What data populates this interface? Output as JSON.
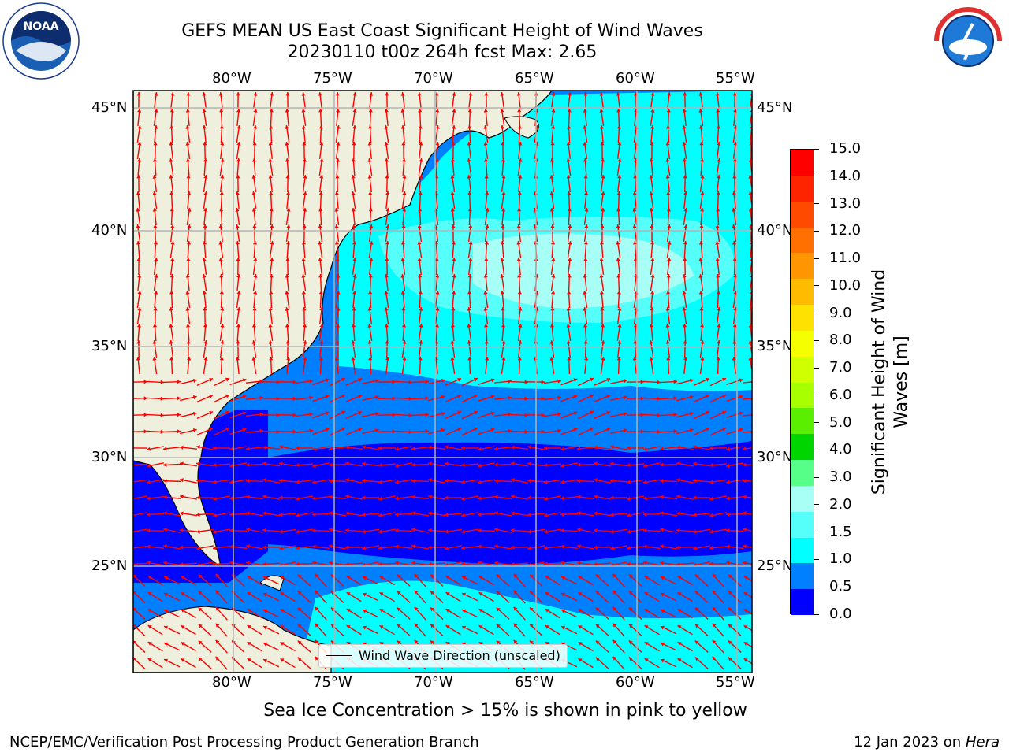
{
  "title_line1": "GEFS MEAN US East Coast Significant Height of Wind Waves",
  "title_line2": "20230110 t00z 264h fcst   Max: 2.65",
  "subtitle": "Sea Ice Concentration > 15% is shown in pink to yellow",
  "footer_left": "NCEP/EMC/Verification Post Processing Product Generation Branch",
  "footer_date": "12 Jan 2023 on",
  "footer_machine": "Hera",
  "legend_label": "Wind Wave Direction (unscaled)",
  "colorbar_title": "Significant Height of Wind Waves [m]",
  "lon_labels": [
    "80°W",
    "75°W",
    "70°W",
    "65°W",
    "60°W",
    "55°W"
  ],
  "lat_labels": [
    "45°N",
    "40°N",
    "35°N",
    "30°N",
    "25°N"
  ],
  "colorbar_ticks": [
    "15.0",
    "14.0",
    "13.0",
    "12.0",
    "11.0",
    "10.0",
    "9.0",
    "8.0",
    "7.0",
    "6.0",
    "5.0",
    "4.0",
    "3.0",
    "2.0",
    "1.5",
    "1.0",
    "0.5",
    "0.0"
  ],
  "colorbar_colors": [
    "#ff0000",
    "#ff2400",
    "#ff4a00",
    "#ff7000",
    "#ff9500",
    "#ffbb00",
    "#ffe100",
    "#f5ff00",
    "#cfff00",
    "#a8ff00",
    "#5aee00",
    "#00d500",
    "#55ff88",
    "#a8fff5",
    "#55fffa",
    "#00ffff",
    "#007fff",
    "#0000ff"
  ],
  "colors": {
    "land": "#efefdd",
    "grid": "#b3b3b3",
    "arrow": "#ff0000",
    "sea_0": "#0000ff",
    "sea_05": "#007fff",
    "sea_1": "#00ffff",
    "sea_15": "#55fffa",
    "sea_2": "#a8fff5"
  },
  "logos": {
    "noaa": "NOAA",
    "nws": "NATIONAL WEATHER SERVICE"
  }
}
